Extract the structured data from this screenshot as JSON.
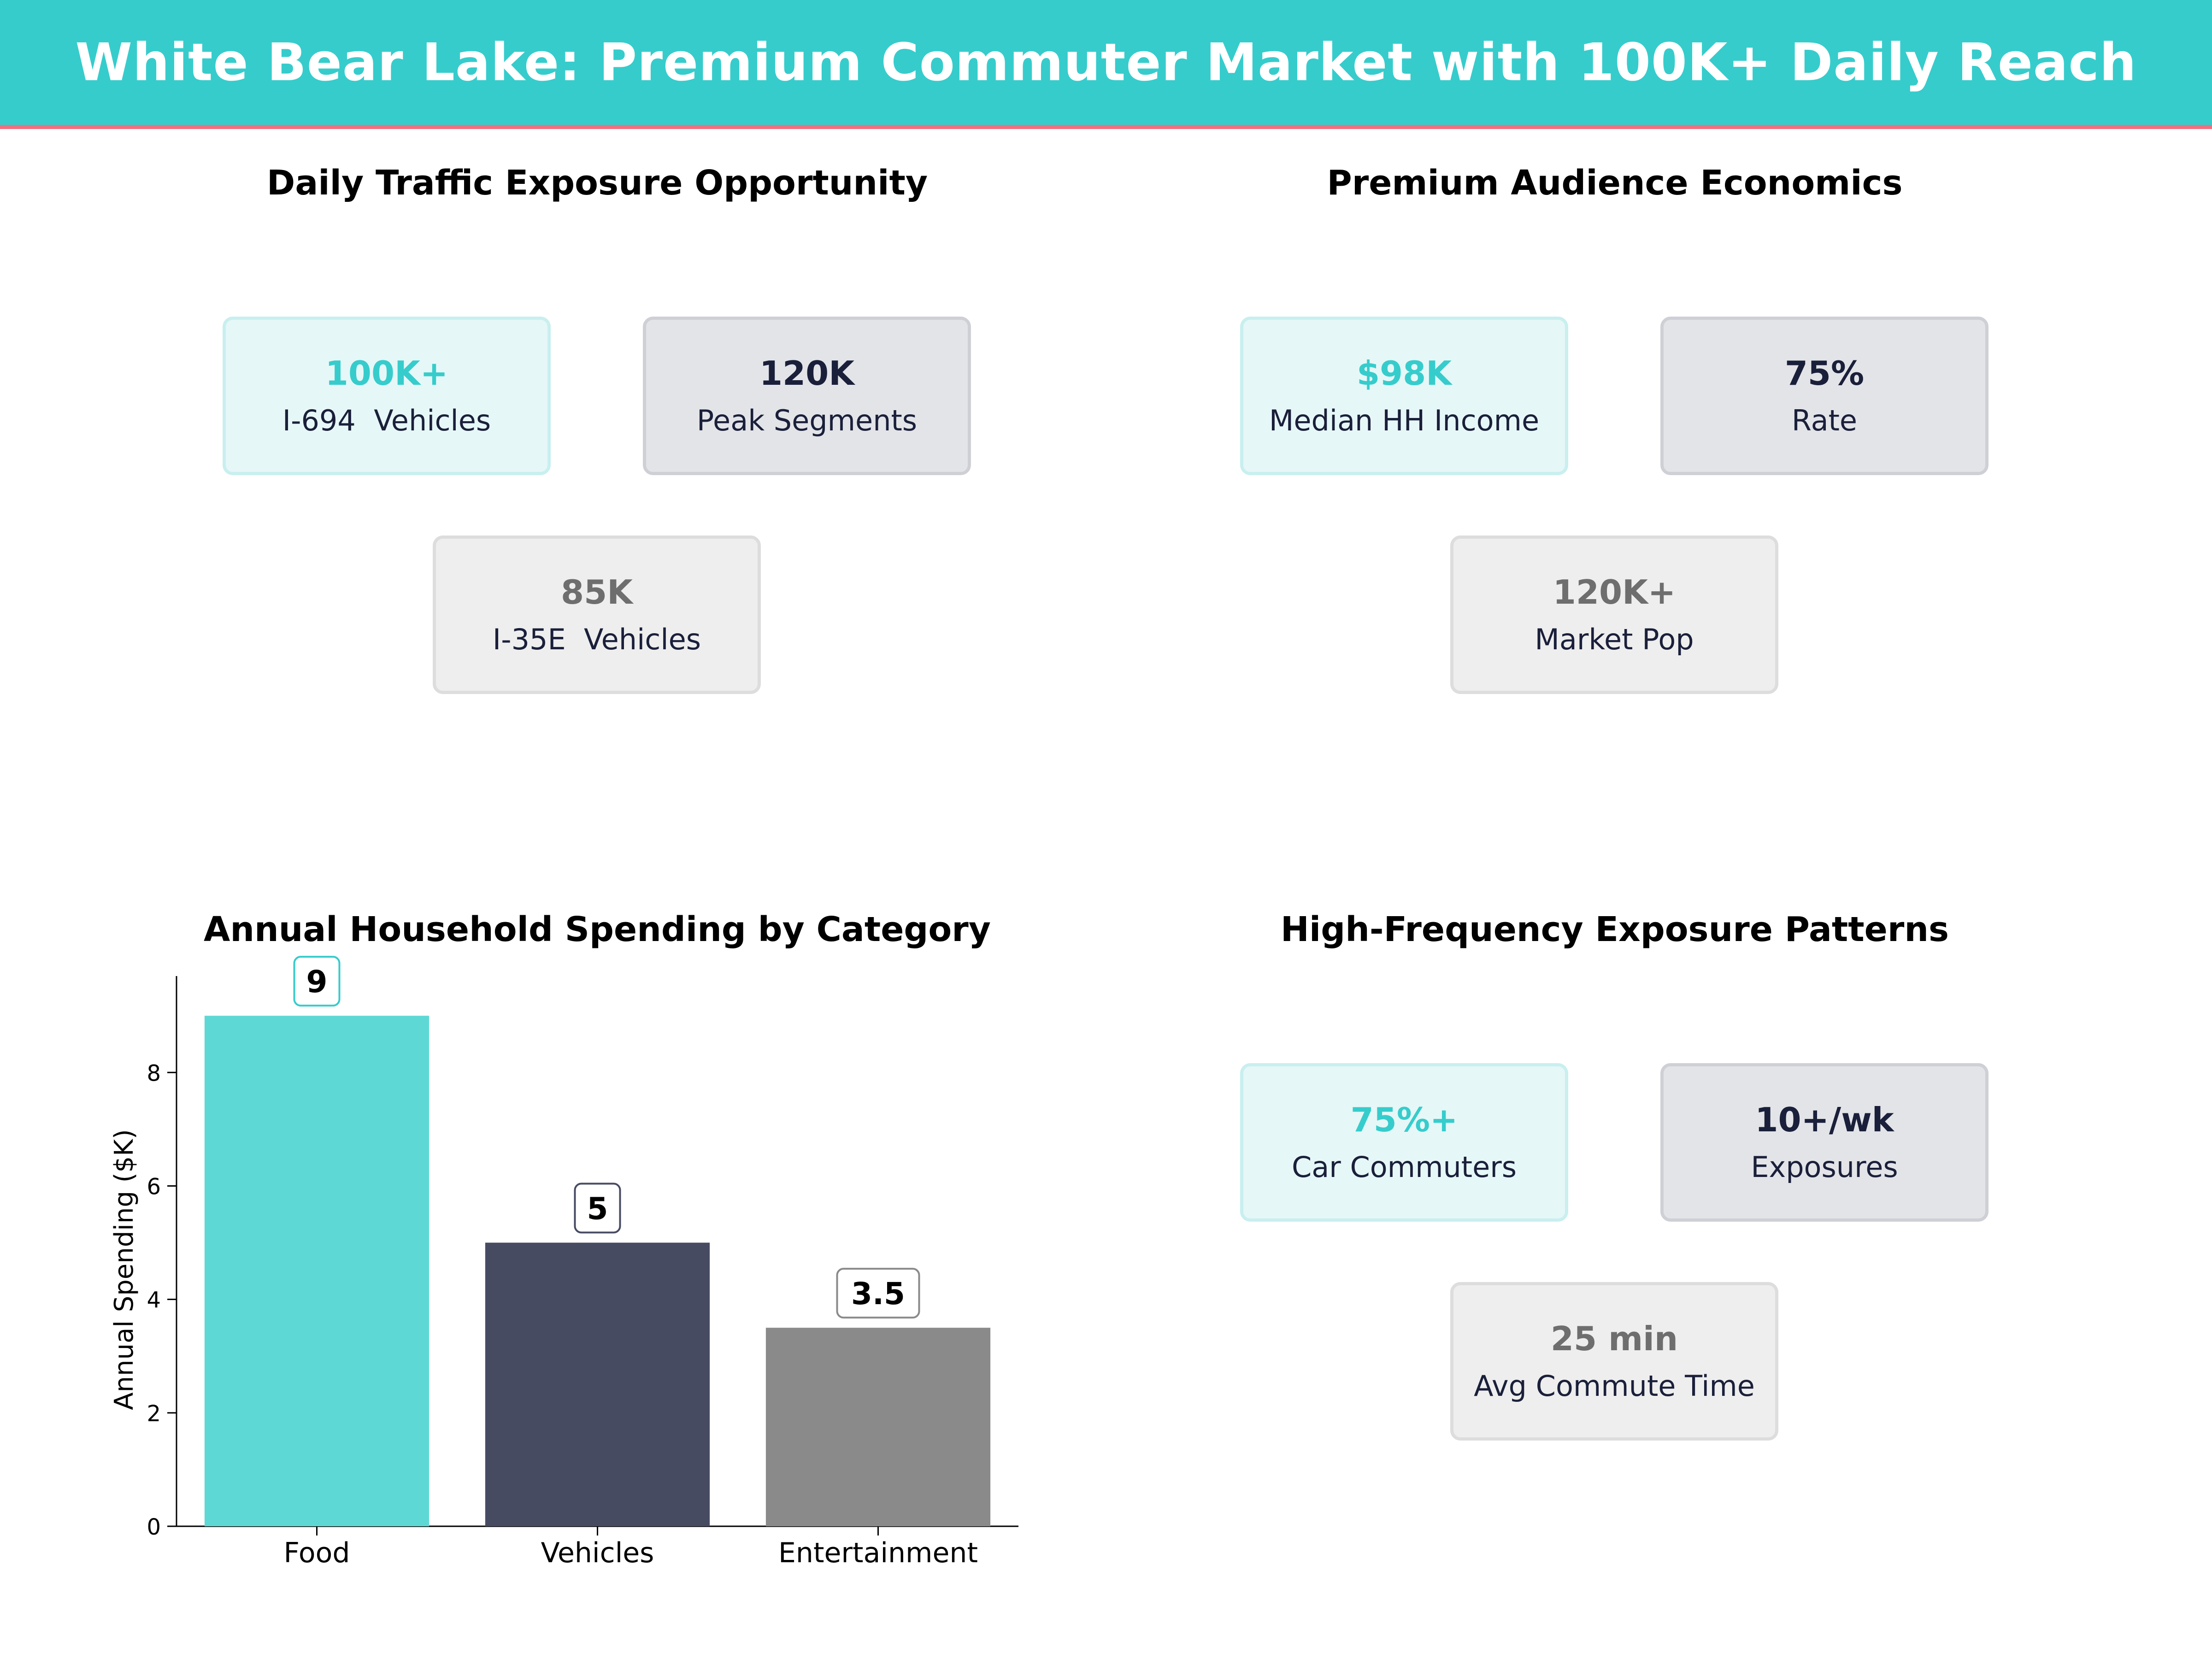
{
  "header": {
    "title": "White Bear Lake: Premium Commuter Market with 100K+ Daily Reach"
  },
  "panels": {
    "traffic": {
      "title": "Daily Traffic Exposure Opportunity",
      "cards": [
        {
          "value": "100K+",
          "label": "I-694  Vehicles"
        },
        {
          "value": "120K",
          "label": "Peak Segments"
        },
        {
          "value": "85K",
          "label": "I-35E  Vehicles"
        }
      ]
    },
    "audience": {
      "title": "Premium Audience Economics",
      "cards": [
        {
          "value": "$98K",
          "label": "Median HH Income"
        },
        {
          "value": "75%",
          "label": "Rate"
        },
        {
          "value": "120K+",
          "label": "Market Pop"
        }
      ]
    },
    "spending": {
      "title": "Annual Household Spending by Category"
    },
    "frequency": {
      "title": "High-Frequency Exposure Patterns",
      "cards": [
        {
          "value": "75%+",
          "label": "Car Commuters"
        },
        {
          "value": "10+/wk",
          "label": "Exposures"
        },
        {
          "value": "25 min",
          "label": "Avg Commute Time"
        }
      ]
    }
  },
  "chart_data": {
    "type": "bar",
    "title": "Annual Household Spending by Category",
    "categories": [
      "Food",
      "Vehicles",
      "Entertainment"
    ],
    "values": [
      9,
      5,
      3.5
    ],
    "value_labels": [
      "9",
      "5",
      "3.5"
    ],
    "ylabel": "Annual Spending ($K)",
    "xlabel": "",
    "ylim": [
      0,
      9.7
    ],
    "yticks": [
      0,
      2,
      4,
      6,
      8
    ],
    "grid": false,
    "colors": [
      "#5ED8D5",
      "#474B62",
      "#8A8A8A"
    ],
    "label_border_colors": [
      "#36CCCC",
      "#474B62",
      "#8A8A8A"
    ]
  }
}
